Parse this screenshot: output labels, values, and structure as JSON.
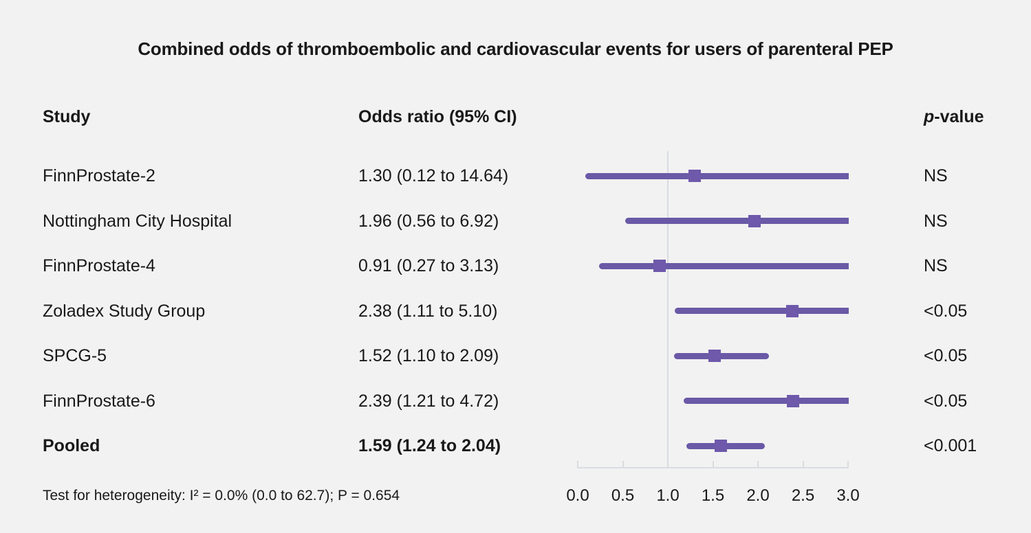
{
  "title": "Combined odds of thromboembolic and cardiovascular events for users of parenteral PEP",
  "columns": {
    "study": "Study",
    "odds_ratio": "Odds ratio (95% CI)",
    "p_italic": "p",
    "p_rest": "-value"
  },
  "footer": "Test for heterogeneity: I² = 0.0% (0.0 to 62.7); P = 0.654",
  "colors": {
    "background": "#f2f2f2",
    "text": "#191919",
    "ci_line": "#6a59a6",
    "marker": "#6e59ab",
    "axis": "#d9dce1"
  },
  "chart_data": {
    "type": "forest",
    "title": "Combined odds of thromboembolic and cardiovascular events for users of parenteral PEP",
    "xlabel": "",
    "xlim": [
      0.0,
      3.0
    ],
    "reference_line": 1.0,
    "ticks": [
      0.0,
      0.5,
      1.0,
      1.5,
      2.0,
      2.5,
      3.0
    ],
    "tick_labels": [
      "0.0",
      "0.5",
      "1.0",
      "1.5",
      "2.0",
      "2.5",
      "3.0"
    ],
    "rows": [
      {
        "study": "FinnProstate-2",
        "or_text": "1.30 (0.12 to 14.64)",
        "or": 1.3,
        "ci_low": 0.12,
        "ci_high": 14.64,
        "p": "NS",
        "bold": false
      },
      {
        "study": "Nottingham City Hospital",
        "or_text": "1.96 (0.56 to 6.92)",
        "or": 1.96,
        "ci_low": 0.56,
        "ci_high": 6.92,
        "p": "NS",
        "bold": false
      },
      {
        "study": "FinnProstate-4",
        "or_text": "0.91 (0.27 to 3.13)",
        "or": 0.91,
        "ci_low": 0.27,
        "ci_high": 3.13,
        "p": "NS",
        "bold": false
      },
      {
        "study": "Zoladex Study Group",
        "or_text": "2.38 (1.11 to 5.10)",
        "or": 2.38,
        "ci_low": 1.11,
        "ci_high": 5.1,
        "p": "<0.05",
        "bold": false
      },
      {
        "study": "SPCG-5",
        "or_text": "1.52 (1.10 to 2.09)",
        "or": 1.52,
        "ci_low": 1.1,
        "ci_high": 2.09,
        "p": "<0.05",
        "bold": false
      },
      {
        "study": "FinnProstate-6",
        "or_text": "2.39 (1.21 to 4.72)",
        "or": 2.39,
        "ci_low": 1.21,
        "ci_high": 4.72,
        "p": "<0.05",
        "bold": false
      },
      {
        "study": "Pooled",
        "or_text": "1.59 (1.24 to 2.04)",
        "or": 1.59,
        "ci_low": 1.24,
        "ci_high": 2.04,
        "p": "<0.001",
        "bold": true
      }
    ]
  }
}
